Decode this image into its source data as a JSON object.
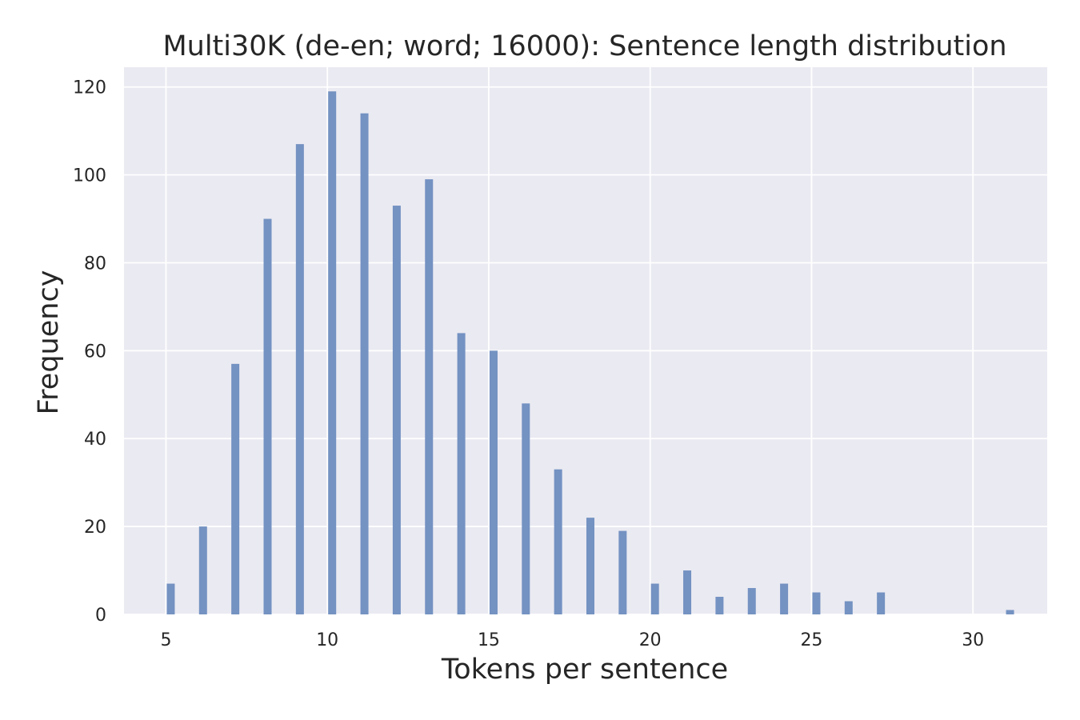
{
  "chart_data": {
    "type": "bar",
    "title": "Multi30K (de-en; word; 16000): Sentence length distribution",
    "xlabel": "Tokens per sentence",
    "ylabel": "Frequency",
    "xlim": [
      3.7,
      32.3
    ],
    "ylim": [
      0,
      124.5
    ],
    "xticks": [
      5,
      10,
      15,
      20,
      25,
      30
    ],
    "yticks": [
      0,
      20,
      40,
      60,
      80,
      100,
      120
    ],
    "grid": true,
    "bar_color": "#7492c2",
    "background_color": "#eaeaf2",
    "x": [
      5,
      6,
      7,
      8,
      9,
      10,
      11,
      12,
      13,
      14,
      15,
      16,
      17,
      18,
      19,
      20,
      21,
      22,
      23,
      24,
      25,
      26,
      27,
      31
    ],
    "values": [
      7,
      20,
      57,
      90,
      107,
      119,
      114,
      93,
      99,
      64,
      60,
      48,
      33,
      22,
      19,
      7,
      10,
      4,
      6,
      7,
      5,
      3,
      5,
      1
    ]
  }
}
